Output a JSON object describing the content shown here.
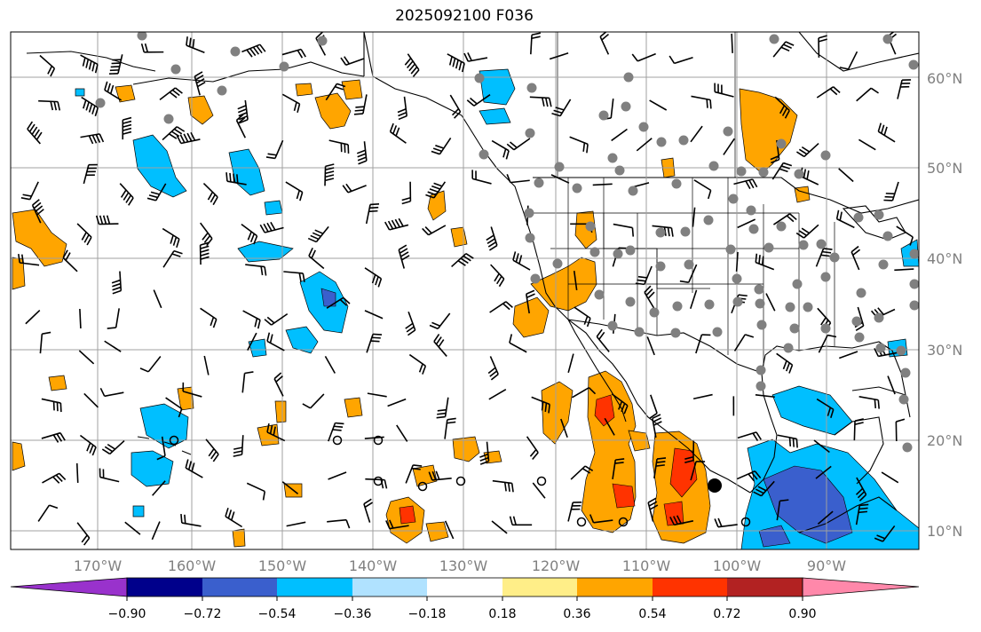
{
  "title": "2025092100 F036",
  "longitude_labels": [
    "170°W",
    "160°W",
    "150°W",
    "140°W",
    "130°W",
    "120°W",
    "110°W",
    "100°W",
    "90°W"
  ],
  "latitude_labels": [
    "60°N",
    "50°N",
    "40°N",
    "30°N",
    "20°N",
    "10°N"
  ],
  "colorbar": {
    "tick_labels": [
      "−0.90",
      "−0.72",
      "−0.54",
      "−0.36",
      "−0.18",
      "0.18",
      "0.36",
      "0.54",
      "0.72",
      "0.90"
    ],
    "colors": [
      "#9932cc",
      "#00008b",
      "#3a5fcd",
      "#00bfff",
      "#b0e2ff",
      "#ffffff",
      "#ffee88",
      "#ffa500",
      "#ff3300",
      "#b22222",
      "#ff88aa"
    ]
  },
  "fill_colors": {
    "orange": "#ffa500",
    "red": "#ff3300",
    "sky": "#00bfff",
    "blue": "#3a5fcd",
    "light_blue": "#b0e2ff",
    "yellow": "#ffee88"
  },
  "station_color": "#808080"
}
